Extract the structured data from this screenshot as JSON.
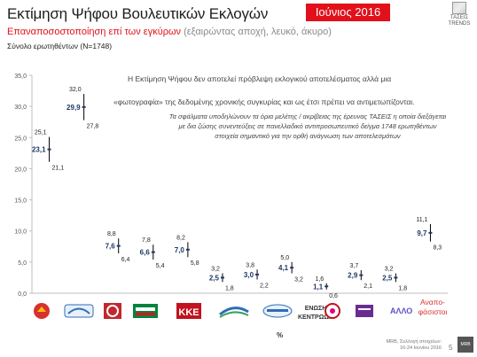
{
  "header": {
    "title": "Εκτίμηση Ψήφου Βουλευτικών Εκλογών",
    "date": "Ιούνιος 2016",
    "brand_name": "ΤΑΣΕΙΣ",
    "brand_sub": "TRENDS",
    "subtitle_red": "Επαναποσοστοποίηση  επί των εγκύρων",
    "subtitle_gray": " (εξαιρώντας αποχή, λευκό, άκυρο)",
    "sample": "Σύνολο ερωτηθέντων (N=1748)"
  },
  "notes": {
    "line1": "Η Εκτίμηση Ψήφου δεν αποτελεί πρόβλεψη εκλογικού αποτελέσματος αλλά μια",
    "line2": "«φωτογραφία» της δεδομένης χρονικής συγκυρίας και ως έτσι πρέπει να αντιμετωπίζονται.",
    "disclaimer": "Τα σφάλματα υποδηλώνουν τα όρια μελέτης / ακρίβειας της έρευνας ΤΑΣΕΙΣ η οποία διεξάγεται με δια ζώσης συνεντεύξεις σε πανελλαδικό αντιπροσωπευτικό δείγμα 1748 ερωτηθέντων στοιχεία σημαντικό για την ορθή ανάγνωση των αποτελεσμάτων"
  },
  "chart_data": {
    "type": "scatter",
    "subtype": "point estimate with error range",
    "ylim": [
      0,
      35
    ],
    "yticks": [
      "0,0",
      "5,0",
      "10,0",
      "15,0",
      "20,0",
      "25,0",
      "30,0",
      "35,0"
    ],
    "xlabel": "%",
    "categories": [
      "Logo 1",
      "Logo 2",
      "Logo 3",
      "Logo 4",
      "ΚΚΕ",
      "Logo 6",
      "Logo 7",
      "ΕΝΩΣΗ ΚΕΝΤΡΩΩΝ",
      "Logo 9",
      "Logo 10",
      "ΑΛΛΟ",
      "Αναποφάσιστοι"
    ],
    "estimate": [
      23.1,
      29.9,
      7.6,
      6.6,
      7.0,
      2.5,
      3.0,
      4.1,
      1.1,
      2.9,
      2.5,
      9.7
    ],
    "estimate_labels": [
      "23,1",
      "29,9",
      "7,6",
      "6,6",
      "7,0",
      "2,5",
      "3,0",
      "4,1",
      "1,1",
      "2,9",
      "2,5",
      "9,7"
    ],
    "upper": [
      25.1,
      32.0,
      8.8,
      7.8,
      8.2,
      3.2,
      3.8,
      5.0,
      1.6,
      3.7,
      3.2,
      11.1
    ],
    "upper_labels": [
      "25,1",
      "32,0",
      "8,8",
      "7,8",
      "8,2",
      "3,2",
      "3,8",
      "5,0",
      "1,6",
      "3,7",
      "3,2",
      "11,1"
    ],
    "lower": [
      21.1,
      27.8,
      6.4,
      5.4,
      5.8,
      1.8,
      2.2,
      3.2,
      0.6,
      2.1,
      1.8,
      8.3
    ],
    "lower_labels": [
      "21,1",
      "27,8",
      "6,4",
      "5,4",
      "5,8",
      "1,8",
      "2,2",
      "3,2",
      "0,6",
      "2,1",
      "1,8",
      "8,3"
    ],
    "grid": false,
    "colors": {
      "estimate": "#1f3864",
      "range": "#000000",
      "axis": "#bfbfbf"
    }
  },
  "party_logos": {
    "kke": "ΚΚΕ",
    "enosi_line1": "ΕΝΩΣΗ",
    "enosi_line2": "ΚΕΝΤΡΩΩΝ",
    "allo": "ΑΛΛΟ",
    "anapofasistoi": "Αναπο-φάσιστοι"
  },
  "footer": {
    "company": "MRB, Συλλογή στοιχείων:",
    "dates": "16-24 Ιουνίου 2016",
    "page": "5",
    "mrb": "MRB"
  }
}
